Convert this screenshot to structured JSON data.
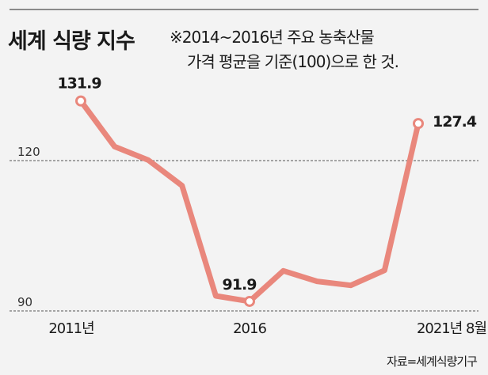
{
  "header": {
    "title": "세계 식량 지수",
    "note_line1": "※2014~2016년 주요 농축산물",
    "note_line2": "가격 평균을 기준(100)으로 한 것."
  },
  "source": "자료=세계식량기구",
  "colors": {
    "line": "#e9877c",
    "background": "#f3f3f3",
    "grid": "#555555"
  },
  "chart_data": {
    "type": "line",
    "title": "세계 식량 지수",
    "x": [
      "2011",
      "2012",
      "2013",
      "2014",
      "2015",
      "2016",
      "2017",
      "2018",
      "2019",
      "2020",
      "2021.8"
    ],
    "values": [
      131.9,
      122.8,
      120.1,
      115.0,
      93.0,
      91.9,
      98.0,
      95.9,
      95.1,
      98.1,
      127.4
    ],
    "x_tick_labels": [
      {
        "index": 0,
        "label": "2011년"
      },
      {
        "index": 5,
        "label": "2016"
      },
      {
        "index": 10,
        "label": "2021년 8월"
      }
    ],
    "y_ticks": [
      90,
      120
    ],
    "gridlines": "dashed at y ticks",
    "data_labels": [
      {
        "index": 0,
        "label": "131.9"
      },
      {
        "index": 5,
        "label": "91.9"
      },
      {
        "index": 10,
        "label": "127.4"
      }
    ],
    "ylim": [
      90,
      135
    ]
  }
}
